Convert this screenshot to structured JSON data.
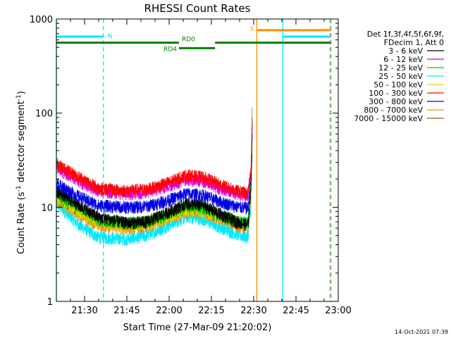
{
  "chart_data": {
    "type": "line",
    "title": "RHESSI Count Rates",
    "xlabel": "Start Time (27-Mar-09 21:20:02)",
    "ylabel_main": "Count Rate (s",
    "ylabel_sup1": "-1",
    "ylabel_mid": " detector segment",
    "ylabel_sup2": "-1",
    "ylabel_end": ")",
    "timestamp": "14-Oct-2021 07:39",
    "x_range_minutes": [
      20,
      120
    ],
    "y_scale": "log",
    "ylim": [
      1,
      1000
    ],
    "x_ticks": [
      {
        "label": "21:30",
        "minute": 30
      },
      {
        "label": "21:45",
        "minute": 45
      },
      {
        "label": "22:00",
        "minute": 60
      },
      {
        "label": "22:15",
        "minute": 75
      },
      {
        "label": "22:30",
        "minute": 90
      },
      {
        "label": "22:45",
        "minute": 105
      },
      {
        "label": "23:00",
        "minute": 120
      }
    ],
    "y_ticks": [
      {
        "label": "1",
        "value": 1
      },
      {
        "label": "10",
        "value": 10
      },
      {
        "label": "100",
        "value": 100
      },
      {
        "label": "1000",
        "value": 1000
      }
    ],
    "legend": {
      "placement": "right",
      "header1": "Det 1f,3f,4f,5f,6f,9f,",
      "header2": "FDecim 1, Att 0"
    },
    "data_end_minute": 89.5,
    "series": [
      {
        "name": "3 - 6 keV",
        "color": "#000000",
        "x": [
          20,
          28,
          35,
          45,
          52,
          60,
          66,
          72,
          78,
          84,
          88,
          89,
          89.5
        ],
        "y": [
          15,
          10.5,
          7.8,
          6.8,
          7.0,
          9.0,
          11.0,
          10.5,
          8.5,
          7.0,
          6.5,
          15,
          60
        ]
      },
      {
        "name": "6 - 12 keV",
        "color": "#e000e0",
        "x": [
          20,
          28,
          35,
          45,
          52,
          60,
          66,
          72,
          78,
          84,
          88,
          89,
          89.5
        ],
        "y": [
          26,
          19,
          15,
          14,
          14.5,
          17,
          20,
          19,
          16,
          14,
          13.5,
          25,
          70
        ]
      },
      {
        "name": "12 - 25 keV",
        "color": "#00d000",
        "x": [
          20,
          28,
          35,
          45,
          52,
          60,
          66,
          72,
          78,
          84,
          88,
          89,
          89.5
        ],
        "y": [
          14,
          10,
          7.5,
          6.8,
          7.0,
          8.5,
          10.5,
          10,
          8.5,
          7.2,
          6.8,
          20,
          120
        ]
      },
      {
        "name": "25 - 50 keV",
        "color": "#00e8ff",
        "x": [
          20,
          28,
          35,
          45,
          52,
          60,
          66,
          72,
          78,
          84,
          88,
          89,
          89.5
        ],
        "y": [
          11,
          6.5,
          4.8,
          4.6,
          5.0,
          6.5,
          8.0,
          7.5,
          6.2,
          5.2,
          4.8,
          10,
          50
        ]
      },
      {
        "name": "50 - 100 keV",
        "color": "#d8d800",
        "x": [
          20,
          28,
          35,
          45,
          52,
          60,
          66,
          72,
          78,
          84,
          88,
          89,
          89.5
        ],
        "y": [
          13,
          9,
          7.0,
          6.5,
          6.8,
          8.0,
          9.5,
          9.2,
          7.8,
          7.0,
          6.5,
          12,
          45
        ]
      },
      {
        "name": "100 - 300 keV",
        "color": "#ff0000",
        "x": [
          20,
          28,
          35,
          45,
          52,
          60,
          66,
          72,
          78,
          84,
          88,
          89,
          89.5
        ],
        "y": [
          29,
          21,
          16,
          15,
          15.5,
          18.5,
          22,
          21,
          17.5,
          15,
          14,
          25,
          80
        ]
      },
      {
        "name": "300 - 800 keV",
        "color": "#0000e0",
        "x": [
          20,
          28,
          35,
          45,
          52,
          60,
          66,
          72,
          78,
          84,
          88,
          89,
          89.5
        ],
        "y": [
          18,
          13,
          10.5,
          10.0,
          10.3,
          12,
          14,
          13.5,
          11.5,
          10.2,
          9.8,
          20,
          90
        ]
      },
      {
        "name": "800 - 7000 keV",
        "color": "#ff8c00",
        "x": [
          20,
          28,
          35,
          45,
          52,
          60,
          66,
          72,
          78,
          84,
          88,
          89,
          89.5
        ],
        "y": [
          12,
          8.5,
          6.5,
          6.0,
          6.3,
          7.8,
          9.0,
          8.8,
          7.5,
          6.5,
          6.0,
          15,
          70
        ]
      },
      {
        "name": "7000 - 15000 keV",
        "color": "#806000",
        "x": [
          20,
          28,
          35,
          45,
          52,
          60,
          66,
          72,
          78,
          84,
          88,
          89,
          89.5
        ],
        "y": [
          13,
          9.2,
          7.2,
          6.8,
          7.0,
          8.4,
          9.8,
          9.5,
          8.0,
          7.0,
          6.6,
          12,
          40
        ]
      }
    ],
    "vertical_lines": [
      {
        "minute": 20.0,
        "color": "#00e8ff",
        "style": "solid"
      },
      {
        "minute": 36.7,
        "color": "#00e8ff",
        "style": "dashed"
      },
      {
        "minute": 91.1,
        "color": "#ff8c00",
        "style": "solid"
      },
      {
        "minute": 100.3,
        "color": "#00e8ff",
        "style": "solid"
      },
      {
        "minute": 117.1,
        "color": "#00e8ff",
        "style": "dashed"
      },
      {
        "minute": 117.4,
        "color": "#ff8c00",
        "style": "dashed"
      }
    ],
    "flag_bars": [
      {
        "label": "N",
        "color": "#00e8ff",
        "x_start": 20.0,
        "x_end": 36.7,
        "y_value": 650
      },
      {
        "label": "",
        "color": "#00e8ff",
        "x_start": 100.3,
        "x_end": 117.1,
        "y_value": 650
      },
      {
        "label": "S",
        "color": "#ff8c00",
        "x_start": 91.1,
        "x_end": 117.4,
        "y_value": 760
      },
      {
        "label": "RD0",
        "color": "#008000",
        "x_start": 20.0,
        "x_end": 63.5,
        "y_value": 560
      },
      {
        "label": "",
        "color": "#008000",
        "x_start": 76.3,
        "x_end": 117.4,
        "y_value": 560
      },
      {
        "label": "RD4",
        "color": "#008000",
        "x_start": 63.5,
        "x_end": 76.3,
        "y_value": 490
      }
    ]
  }
}
